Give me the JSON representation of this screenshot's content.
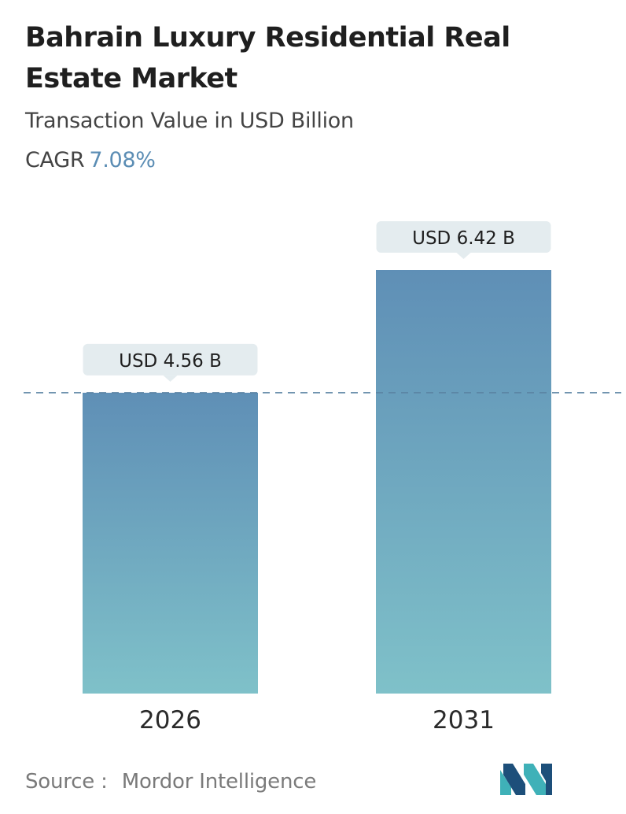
{
  "header": {
    "title": "Bahrain Luxury Residential Real Estate Market",
    "subtitle": "Transaction Value in USD Billion",
    "cagr_label": "CAGR",
    "cagr_value": "7.08%"
  },
  "chart_data": {
    "type": "bar",
    "categories": [
      "2026",
      "2031"
    ],
    "values": [
      4.56,
      6.42
    ],
    "value_labels": [
      "USD 4.56 B",
      "USD 6.42 B"
    ],
    "title": "Bahrain Luxury Residential Real Estate Market",
    "subtitle": "Transaction Value in USD Billion",
    "ylabel": "",
    "xlabel": "",
    "grid": false,
    "reference_line": 4.56
  },
  "footer": {
    "source_label": "Source :",
    "source_name": "Mordor Intelligence",
    "logo_icon": "mordor-intelligence-logo-icon"
  },
  "colors": {
    "bar_top": "#5f8fb6",
    "bar_bottom": "#7fc1c9",
    "label_bg": "#e4ecef",
    "dash_line": "#5b83a3",
    "cagr_accent": "#5b8db4",
    "logo_dark": "#1d4f7a",
    "logo_teal": "#3fb1b8"
  }
}
